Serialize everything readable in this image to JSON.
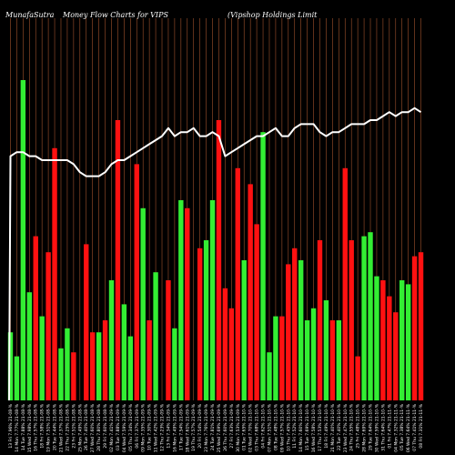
{
  "header": {
    "brand": "MunafaSutra",
    "chart_name": "Money Flow  Charts for VIPS",
    "company": "(Vipshop Holdings Limit"
  },
  "colors": {
    "background": "#000000",
    "up": "#33ee33",
    "down": "#ff1111",
    "line": "#ffffff",
    "grid": "#a0522d"
  },
  "chart_data": {
    "type": "bar",
    "title": "Money Flow  Charts for VIPS",
    "xlabel": "",
    "ylabel": "",
    "grid": true,
    "ylim": [
      0,
      100
    ],
    "categories": [
      "13 Fri 7.96% 21-08-%",
      "14 Mon 7.77% 21-08-%",
      "14 Tue 7.88% 21-08-%",
      "15 Wed 7.98% 21-08-%",
      "16 Thu 7.57% 21-08-%",
      "18 Fri 7.58% 21-08-%",
      "19 Mon 7.51% 21-08-%",
      "20 Tue 7.44% 21-08-%",
      "21 Wed 7.37% 21-08-%",
      "22 Thu 7.25% 21-08-%",
      "23 Fri 7.51% 21-08-%",
      "25 Mon 7.49% 21-08-%",
      "26 Tue 7.40% 21-08-%",
      "27 Wed 7.60% 21-08-%",
      "28 Thu 7.80% 21-08-%",
      "29 Fri 7.60% 21-08-%",
      "02 Mon 7.41% 21-09-%",
      "03 Tue 7.88% 21-09-%",
      "04 Wed 7.59% 21-09-%",
      "05 Thu 7.34% 21-09-%",
      "06 Fri 7.37% 21-09-%",
      "09 Mon 7.35% 21-09-%",
      "10 Tue 7.30% 21-09-%",
      "11 Wed 7.42% 21-09-%",
      "12 Thu 7.23% 21-09-%",
      "13 Fri 7.34% 21-09-%",
      "16 Mon 7.49% 21-09-%",
      "17 Tue 7.54% 21-09-%",
      "18 Wed 7.61% 21-09-%",
      "19 Thu 7.57% 21-09-%",
      "20 Fri 7.54% 21-09-%",
      "23 Mon 7.76% 21-09-%",
      "24 Tue 7.81% 21-09-%",
      "25 Wed 7.69% 21-09-%",
      "26 Thu 7.60% 21-09-%",
      "27 Fri 7.63% 21-09-%",
      "30 Mon 7.53% 21-09-%",
      "01 Tue 7.65% 21-10-%",
      "02 Wed 7.70% 21-10-%",
      "03 Thu 7.68% 21-10-%",
      "04 Fri 7.62% 21-10-%",
      "07 Mon 7.51% 21-10-%",
      "08 Tue 7.48% 21-10-%",
      "09 Wed 7.57% 21-10-%",
      "10 Thu 7.45% 21-10-%",
      "11 Fri 7.52% 21-10-%",
      "14 Mon 7.60% 21-10-%",
      "15 Tue 7.69% 21-10-%",
      "16 Wed 7.58% 21-10-%",
      "17 Thu 7.53% 21-10-%",
      "18 Fri 7.49% 21-10-%",
      "21 Mon 7.40% 21-10-%",
      "22 Tue 7.40% 21-10-%",
      "23 Wed 7.47% 21-10-%",
      "24 Thu 7.55% 21-10-%",
      "25 Fri 7.48% 21-10-%",
      "28 Mon 7.69% 21-10-%",
      "29 Tue 7.64% 21-10-%",
      "30 Wed 7.59% 21-10-%",
      "31 Thu 7.64% 21-10-%",
      "01 Fri 7.47% 21-11-%",
      "04 Mon 7.32% 21-11-%",
      "05 Tue 7.38% 21-11-%",
      "06 Wed 7.64% 21-11-%",
      "07 Thu 7.41% 21-11-%",
      "08 Fri 7.31% 21-11-%"
    ],
    "series": [
      {
        "values": [
          17,
          11,
          80,
          27,
          41,
          21,
          37,
          63,
          13,
          18,
          12,
          0,
          39,
          17,
          17,
          20,
          30,
          70,
          24,
          16,
          59,
          48,
          20,
          32,
          0,
          30,
          18,
          50,
          48,
          0,
          38,
          40,
          50,
          70,
          28,
          23,
          58,
          35,
          54,
          44,
          67,
          12,
          21,
          21,
          34,
          38,
          35,
          20,
          23,
          40,
          25,
          20,
          20,
          58,
          40,
          11,
          41,
          42,
          31,
          30,
          26,
          22,
          30,
          29,
          36,
          37
        ],
        "directions": [
          "up",
          "up",
          "up",
          "up",
          "down",
          "up",
          "down",
          "down",
          "up",
          "up",
          "down",
          "up",
          "down",
          "down",
          "up",
          "down",
          "up",
          "down",
          "up",
          "up",
          "down",
          "up",
          "down",
          "up",
          "down",
          "down",
          "up",
          "up",
          "down",
          "up",
          "down",
          "up",
          "up",
          "down",
          "down",
          "down",
          "down",
          "up",
          "down",
          "down",
          "up",
          "up",
          "up",
          "down",
          "down",
          "down",
          "up",
          "up",
          "up",
          "down",
          "up",
          "down",
          "up",
          "down",
          "down",
          "down",
          "up",
          "up",
          "up",
          "down",
          "down",
          "down",
          "up",
          "up",
          "down",
          "down"
        ]
      }
    ],
    "line": [
      61,
      62,
      62,
      61,
      61,
      60,
      60,
      60,
      60,
      60,
      59,
      57,
      56,
      56,
      56,
      57,
      59,
      60,
      60,
      61,
      62,
      63,
      64,
      65,
      66,
      68,
      66,
      67,
      67,
      68,
      66,
      66,
      67,
      66,
      61,
      62,
      63,
      64,
      65,
      66,
      66,
      67,
      68,
      66,
      66,
      68,
      69,
      69,
      69,
      67,
      66,
      67,
      67,
      68,
      69,
      69,
      69,
      70,
      70,
      71,
      72,
      71,
      72,
      72,
      73,
      72
    ]
  }
}
